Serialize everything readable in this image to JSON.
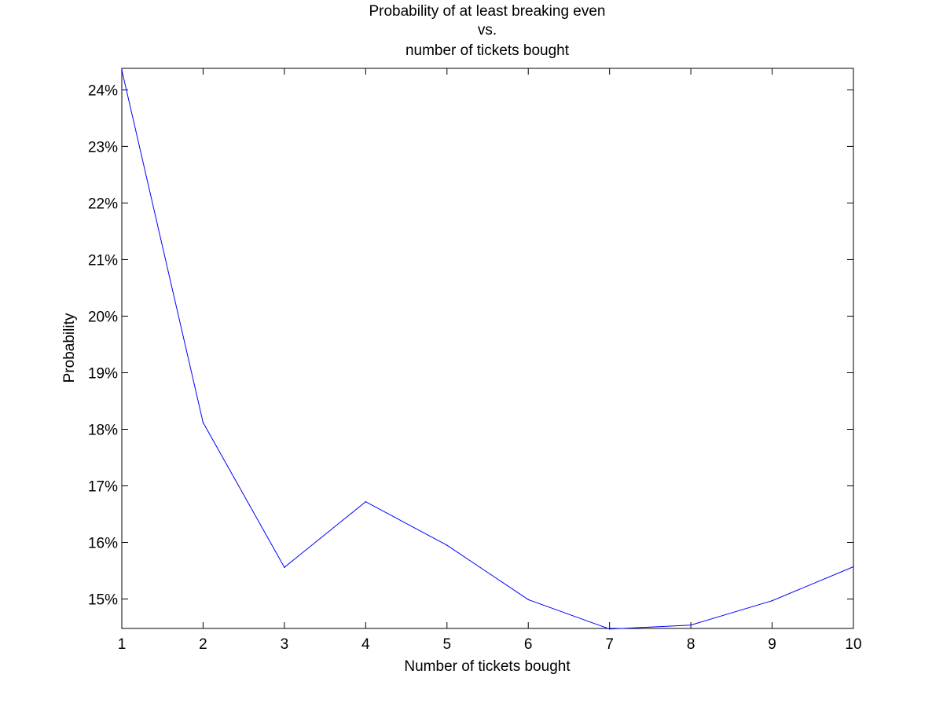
{
  "chart_data": {
    "type": "line",
    "title": [
      "Probability of at least breaking even",
      "vs.",
      "number of tickets bought"
    ],
    "xlabel": "Number of tickets bought",
    "ylabel": "Probability",
    "x": [
      1,
      2,
      3,
      4,
      5,
      6,
      7,
      8,
      9,
      10
    ],
    "series": [
      {
        "values": [
          24.35,
          18.12,
          15.56,
          16.72,
          15.95,
          14.99,
          14.47,
          14.54,
          14.97,
          15.57
        ],
        "color": "#0000ff"
      }
    ],
    "xlim": [
      1,
      10
    ],
    "ylim": [
      14.48,
      24.38
    ],
    "xticks": [
      1,
      2,
      3,
      4,
      5,
      6,
      7,
      8,
      9,
      10
    ],
    "xtick_labels": [
      "1",
      "2",
      "3",
      "4",
      "5",
      "6",
      "7",
      "8",
      "9",
      "10"
    ],
    "yticks": [
      15,
      16,
      17,
      18,
      19,
      20,
      21,
      22,
      23,
      24
    ],
    "ytick_labels": [
      "15%",
      "16%",
      "17%",
      "18%",
      "19%",
      "20%",
      "21%",
      "22%",
      "23%",
      "24%"
    ],
    "grid": false,
    "legend": "none"
  }
}
